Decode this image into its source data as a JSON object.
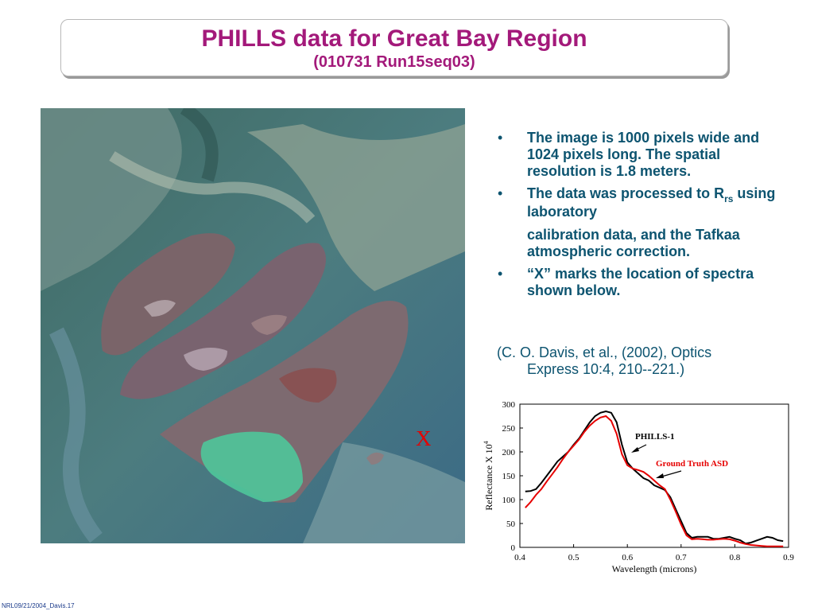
{
  "slide": {
    "title": "PHILLS data for Great Bay Region",
    "subtitle": "(010731 Run15seq03)",
    "image_marker": "X",
    "bullets": [
      "The image is 1000 pixels wide and 1024 pixels long. The spatial resolution is 1.8 meters.",
      {
        "pre": "The data was processed to R",
        "sub": "rs",
        "post": " using laboratory",
        "line2": "calibration data, and the Tafkaa atmospheric correction."
      },
      "“X” marks the location of spectra shown below."
    ],
    "citation_line1": "(C. O. Davis, et al., (2002), Optics",
    "citation_line2": "Express 10:4, 210--221.)",
    "footer": "NRL09/21/2004_Davis.17"
  },
  "chart_data": {
    "type": "line",
    "xlabel": "Wavelength (microns)",
    "ylabel": "Reflectance X 10",
    "ylabel_exponent": "4",
    "xlim": [
      0.4,
      0.9
    ],
    "ylim": [
      0,
      300
    ],
    "x_ticks": [
      "0.4",
      "0.5",
      "0.6",
      "0.7",
      "0.8",
      "0.9"
    ],
    "y_ticks": [
      "0",
      "50",
      "100",
      "150",
      "200",
      "250",
      "300"
    ],
    "grid": false,
    "series": [
      {
        "name": "PHILLS-1",
        "color": "#000000",
        "x": [
          0.41,
          0.42,
          0.43,
          0.44,
          0.45,
          0.46,
          0.47,
          0.48,
          0.49,
          0.5,
          0.51,
          0.52,
          0.53,
          0.54,
          0.55,
          0.56,
          0.57,
          0.58,
          0.59,
          0.6,
          0.61,
          0.62,
          0.63,
          0.64,
          0.65,
          0.66,
          0.67,
          0.68,
          0.69,
          0.7,
          0.71,
          0.72,
          0.73,
          0.74,
          0.75,
          0.76,
          0.77,
          0.78,
          0.79,
          0.8,
          0.81,
          0.82,
          0.83,
          0.84,
          0.85,
          0.86,
          0.87,
          0.88,
          0.89
        ],
        "y": [
          117,
          118,
          122,
          135,
          150,
          165,
          180,
          190,
          200,
          215,
          228,
          245,
          262,
          275,
          282,
          285,
          282,
          262,
          215,
          178,
          165,
          155,
          145,
          140,
          130,
          125,
          120,
          105,
          80,
          55,
          30,
          20,
          22,
          22,
          22,
          18,
          18,
          20,
          22,
          18,
          15,
          8,
          10,
          14,
          18,
          22,
          20,
          15,
          13
        ]
      },
      {
        "name": "Ground Truth ASD",
        "color": "#e60000",
        "x": [
          0.41,
          0.42,
          0.43,
          0.44,
          0.45,
          0.46,
          0.47,
          0.48,
          0.49,
          0.5,
          0.51,
          0.52,
          0.53,
          0.54,
          0.55,
          0.56,
          0.57,
          0.58,
          0.59,
          0.6,
          0.61,
          0.62,
          0.63,
          0.64,
          0.65,
          0.66,
          0.67,
          0.68,
          0.69,
          0.7,
          0.71,
          0.72,
          0.73,
          0.74,
          0.75,
          0.76,
          0.77,
          0.78,
          0.79,
          0.8,
          0.81,
          0.82,
          0.83,
          0.84,
          0.85,
          0.86,
          0.87,
          0.88,
          0.89
        ],
        "y": [
          83,
          95,
          110,
          122,
          138,
          153,
          168,
          185,
          200,
          213,
          226,
          242,
          255,
          265,
          272,
          275,
          265,
          238,
          195,
          172,
          165,
          162,
          158,
          150,
          140,
          130,
          122,
          100,
          75,
          48,
          25,
          17,
          18,
          17,
          16,
          16,
          17,
          18,
          17,
          14,
          10,
          7,
          5,
          4,
          3,
          2,
          2,
          2,
          2
        ]
      }
    ]
  }
}
